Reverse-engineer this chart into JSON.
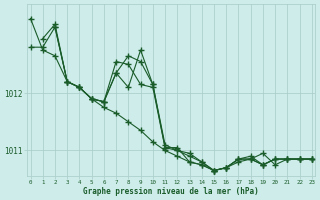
{
  "title": "Graphe pression niveau de la mer (hPa)",
  "bg_color": "#ceecea",
  "grid_color": "#a8ccc8",
  "line_color": "#1a5c2a",
  "xlim": [
    -0.3,
    23.3
  ],
  "ylim": [
    1010.55,
    1013.55
  ],
  "yticks": [
    1011,
    1012
  ],
  "xticks": [
    0,
    1,
    2,
    3,
    4,
    5,
    6,
    7,
    8,
    9,
    10,
    11,
    12,
    13,
    14,
    15,
    16,
    17,
    18,
    19,
    20,
    21,
    22,
    23
  ],
  "series": [
    {
      "x": [
        0,
        1,
        2,
        3,
        4,
        5,
        6,
        7,
        8,
        9,
        10,
        11,
        12,
        13,
        14,
        15,
        16,
        17,
        18,
        19,
        20,
        21,
        22,
        23
      ],
      "y": [
        1013.3,
        1012.75,
        1012.65,
        1012.2,
        1012.1,
        1011.9,
        1011.75,
        1011.65,
        1011.5,
        1011.35,
        1011.15,
        1011.0,
        1010.9,
        1010.8,
        1010.75,
        1010.65,
        1010.7,
        1010.85,
        1010.85,
        1010.95,
        1010.75,
        1010.85,
        1010.85,
        1010.85
      ]
    },
    {
      "x": [
        0,
        1,
        2,
        3,
        4,
        5,
        6,
        7,
        8,
        9,
        10,
        11,
        12,
        13,
        14,
        15,
        16,
        17,
        18,
        19,
        20,
        21,
        22,
        23
      ],
      "y": [
        1012.8,
        1012.8,
        1013.15,
        1012.2,
        1012.1,
        1011.9,
        1011.85,
        1012.35,
        1012.1,
        1012.75,
        1012.15,
        1011.05,
        1011.05,
        1010.8,
        1010.75,
        1010.65,
        1010.7,
        1010.85,
        1010.85,
        1010.75,
        1010.85,
        1010.85,
        1010.85,
        1010.85
      ]
    },
    {
      "x": [
        1,
        2,
        3,
        4,
        5,
        6,
        7,
        8,
        9,
        10,
        11,
        12,
        13,
        14,
        15,
        16,
        17,
        18,
        19,
        20,
        21,
        22,
        23
      ],
      "y": [
        1012.95,
        1013.2,
        1012.2,
        1012.1,
        1011.9,
        1011.85,
        1012.35,
        1012.65,
        1012.55,
        1012.15,
        1011.1,
        1011.0,
        1010.95,
        1010.8,
        1010.65,
        1010.7,
        1010.85,
        1010.9,
        1010.75,
        1010.85,
        1010.85,
        1010.85,
        1010.85
      ]
    },
    {
      "x": [
        2,
        3,
        4,
        5,
        6,
        7,
        8,
        9,
        10,
        11,
        12,
        13,
        14,
        15,
        16,
        17,
        18,
        19,
        20,
        21,
        22,
        23
      ],
      "y": [
        1013.15,
        1012.2,
        1012.1,
        1011.9,
        1011.85,
        1012.55,
        1012.5,
        1012.15,
        1012.1,
        1011.05,
        1011.0,
        1010.9,
        1010.8,
        1010.65,
        1010.7,
        1010.8,
        1010.85,
        1010.75,
        1010.85,
        1010.85,
        1010.85,
        1010.85
      ]
    }
  ]
}
